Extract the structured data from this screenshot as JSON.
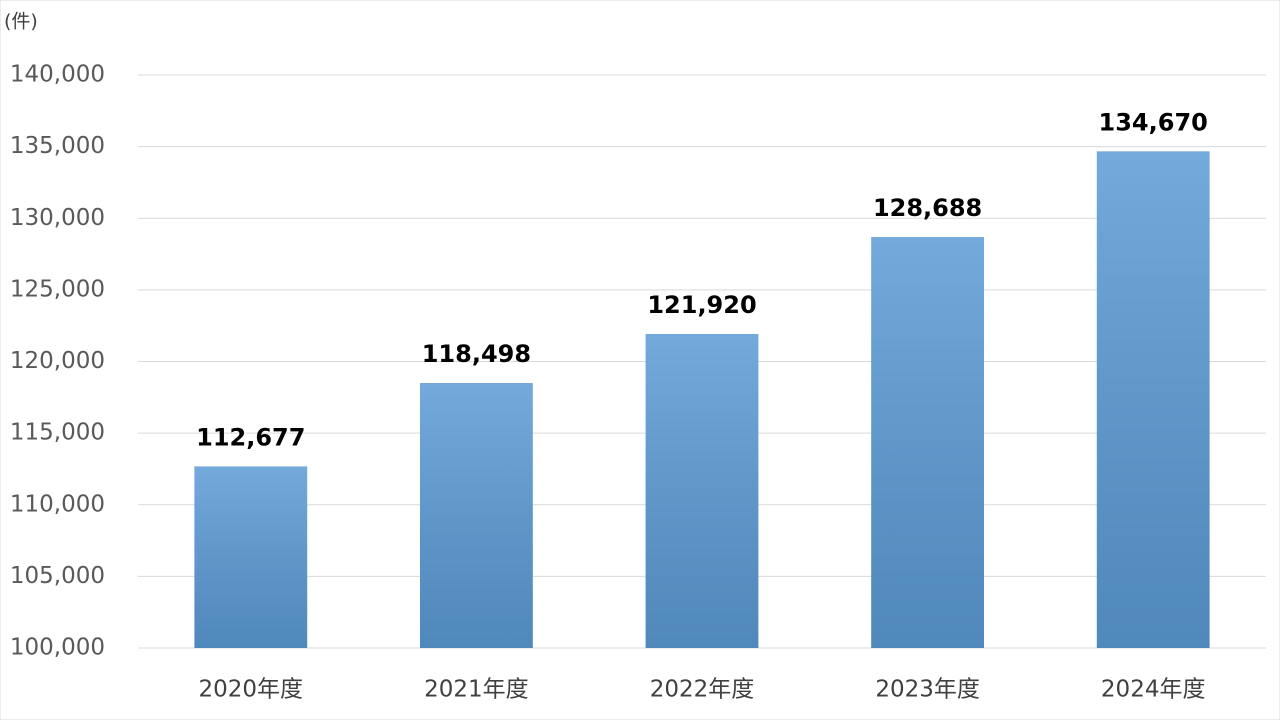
{
  "chart_data": {
    "type": "bar",
    "y_label": "(件)",
    "categories": [
      "2020年度",
      "2021年度",
      "2022年度",
      "2023年度",
      "2024年度"
    ],
    "values": [
      112677,
      118498,
      121920,
      128688,
      134670
    ],
    "value_labels": [
      "112,677",
      "118,498",
      "121,920",
      "128,688",
      "134,670"
    ],
    "color": "#5b9bd5",
    "ylim": [
      100000,
      140000
    ],
    "yticks": [
      {
        "value": 100000,
        "label": "100,000"
      },
      {
        "value": 105000,
        "label": "105,000"
      },
      {
        "value": 110000,
        "label": "110,000"
      },
      {
        "value": 115000,
        "label": "115,000"
      },
      {
        "value": 120000,
        "label": "120,000"
      },
      {
        "value": 125000,
        "label": "125,000"
      },
      {
        "value": 130000,
        "label": "130,000"
      },
      {
        "value": 135000,
        "label": "135,000"
      },
      {
        "value": 140000,
        "label": "140,000"
      }
    ],
    "grid": true
  }
}
